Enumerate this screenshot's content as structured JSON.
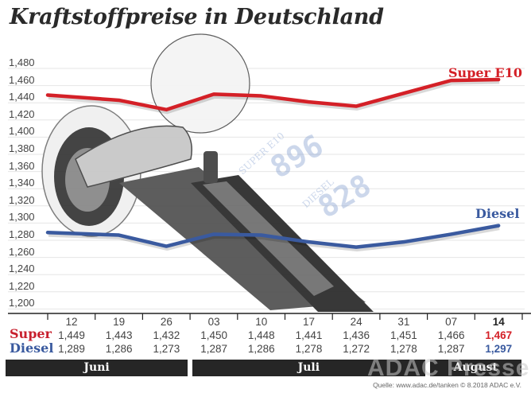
{
  "title": "Kraftstoffpreise in Deutschland",
  "chart_data": {
    "type": "line",
    "title": "Kraftstoffpreise in Deutschland",
    "xlabel": "",
    "ylabel": "",
    "ylim": [
      1.2,
      1.48
    ],
    "y_ticks": [
      "1,480",
      "1,460",
      "1,440",
      "1,420",
      "1,400",
      "1,380",
      "1,360",
      "1,340",
      "1,320",
      "1,300",
      "1,280",
      "1,260",
      "1,240",
      "1,220",
      "1,200"
    ],
    "grid": true,
    "categories": [
      "12",
      "19",
      "26",
      "03",
      "10",
      "17",
      "24",
      "31",
      "07",
      "14"
    ],
    "months": [
      {
        "label": "Juni",
        "span": 3
      },
      {
        "label": "Juli",
        "span": 5
      },
      {
        "label": "August",
        "span": 2
      }
    ],
    "series": [
      {
        "name": "Super E10",
        "row_label": "Super",
        "color": "#d42027",
        "values": [
          1.449,
          1.443,
          1.432,
          1.45,
          1.448,
          1.441,
          1.436,
          1.451,
          1.466,
          1.467
        ],
        "display": [
          "1,449",
          "1,443",
          "1,432",
          "1,450",
          "1,448",
          "1,441",
          "1,436",
          "1,451",
          "1,466",
          "1,467"
        ]
      },
      {
        "name": "Diesel",
        "row_label": "Diesel",
        "color": "#3a5a9f",
        "values": [
          1.289,
          1.286,
          1.273,
          1.287,
          1.286,
          1.278,
          1.272,
          1.278,
          1.287,
          1.297
        ],
        "display": [
          "1,289",
          "1,286",
          "1,273",
          "1,287",
          "1,286",
          "1,278",
          "1,272",
          "1,278",
          "1,287",
          "1,297"
        ]
      }
    ],
    "legend": [
      "Super E10",
      "Diesel"
    ],
    "legend_position": "inline at line ends"
  },
  "illustration": {
    "pump_display_super": "SUPER E10",
    "pump_display_diesel": "DIESEL"
  },
  "source": "Quelle: www.adac.de/tanken   © 8.2018  ADAC e.V.",
  "watermark": "ADAC Presse"
}
